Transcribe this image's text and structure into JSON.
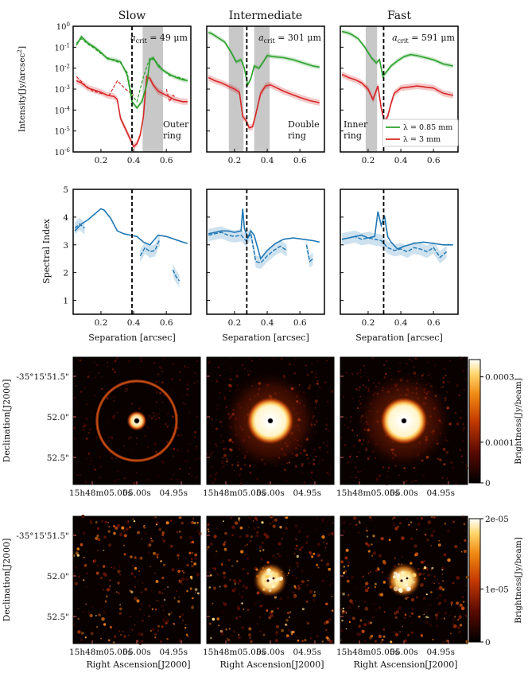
{
  "columns": [
    "Slow",
    "Intermediate",
    "Fast"
  ],
  "colors": {
    "green": "#2ca02c",
    "red": "#d62728",
    "blue": "#1f77b4",
    "region": "#c8c8c8"
  },
  "chart_data": [
    {
      "type": "line",
      "row": "intensity",
      "ylabel": "Intensity[Jy/arcsec$^2$]",
      "xlim": [
        0.03,
        0.75
      ],
      "ylim_log10": [
        -6,
        0
      ],
      "yscale": "log",
      "ytick_labels": [
        "10$^{-6}$",
        "10$^{-5}$",
        "10$^{-4}$",
        "10$^{-3}$",
        "10$^{-2}$",
        "10$^{-1}$",
        "10$^{0}$"
      ],
      "xtick_labels": [
        "0.2",
        "0.4",
        "0.6"
      ],
      "legend": [
        "λ = 0.85 mm",
        "λ = 3 mm"
      ],
      "panels": [
        {
          "title": "Slow",
          "a_crit_label": "a_crit = 49 μm",
          "dashed_x": 0.39,
          "shaded": [
            [
              0.455,
              0.58
            ]
          ],
          "annotation": [
            "Outer",
            "ring"
          ],
          "green": {
            "x": [
              0.05,
              0.08,
              0.12,
              0.16,
              0.2,
              0.24,
              0.28,
              0.32,
              0.36,
              0.39,
              0.42,
              0.45,
              0.48,
              0.5,
              0.52,
              0.55,
              0.58,
              0.62,
              0.66,
              0.7,
              0.73
            ],
            "log10_y": [
              -0.9,
              -0.5,
              -0.8,
              -1.0,
              -1.25,
              -1.55,
              -1.6,
              -1.7,
              -2.3,
              -3.6,
              -3.9,
              -3.6,
              -2.8,
              -1.6,
              -1.5,
              -1.9,
              -2.1,
              -2.3,
              -2.45,
              -2.55,
              -2.6
            ]
          },
          "green_model": {
            "x": [
              0.05,
              0.08,
              0.12,
              0.16,
              0.2,
              0.24,
              0.28,
              0.32,
              0.36,
              0.39,
              0.42,
              0.46,
              0.5,
              0.54,
              0.58,
              0.62,
              0.66,
              0.7,
              0.73
            ],
            "log10_y": [
              -0.8,
              -0.6,
              -0.85,
              -1.05,
              -1.3,
              -1.5,
              -1.65,
              -1.75,
              -2.2,
              -3.3,
              -3.6,
              -2.4,
              -1.5,
              -1.7,
              -2.1,
              -2.35,
              -2.4,
              -2.5,
              -2.6
            ]
          },
          "red": {
            "x": [
              0.05,
              0.08,
              0.12,
              0.16,
              0.2,
              0.24,
              0.28,
              0.3,
              0.32,
              0.35,
              0.38,
              0.4,
              0.42,
              0.44,
              0.46,
              0.48,
              0.5,
              0.52,
              0.55,
              0.6,
              0.65,
              0.7,
              0.73
            ],
            "log10_y": [
              -2.6,
              -2.7,
              -2.95,
              -3.05,
              -3.15,
              -3.3,
              -3.35,
              -3.5,
              -4.4,
              -4.9,
              -5.4,
              -5.75,
              -5.6,
              -5.2,
              -4.3,
              -2.4,
              -2.5,
              -2.8,
              -3.1,
              -3.3,
              -3.5,
              -3.6,
              -3.6
            ]
          },
          "red_model": {
            "x": [
              0.05,
              0.1,
              0.15,
              0.2,
              0.25,
              0.3,
              0.35,
              0.4
            ],
            "log10_y": [
              -2.4,
              -2.8,
              -3.1,
              -3.2,
              -3.3,
              -2.6,
              -3.0,
              -3.3
            ]
          },
          "red_model_segment2": {
            "x": [
              0.6,
              0.62,
              0.64,
              0.66
            ],
            "log10_y": [
              -3.0,
              -3.6,
              -3.3,
              -3.4
            ]
          }
        },
        {
          "title": "Intermediate",
          "a_crit_label": "a_crit = 301 μm",
          "dashed_x": 0.275,
          "shaded": [
            [
              0.165,
              0.255
            ],
            [
              0.32,
              0.415
            ]
          ],
          "annotation": [
            "Double",
            "ring"
          ],
          "green": {
            "x": [
              0.04,
              0.06,
              0.1,
              0.14,
              0.18,
              0.21,
              0.24,
              0.26,
              0.28,
              0.3,
              0.32,
              0.35,
              0.38,
              0.4,
              0.44,
              0.5,
              0.56,
              0.62,
              0.68,
              0.72
            ],
            "log10_y": [
              -0.3,
              -0.35,
              -0.55,
              -0.75,
              -1.25,
              -1.7,
              -1.6,
              -2.0,
              -2.8,
              -2.5,
              -1.9,
              -2.0,
              -1.65,
              -1.4,
              -1.45,
              -1.5,
              -1.6,
              -1.75,
              -1.9,
              -1.95
            ]
          },
          "red": {
            "x": [
              0.04,
              0.08,
              0.12,
              0.16,
              0.2,
              0.23,
              0.25,
              0.27,
              0.29,
              0.31,
              0.33,
              0.36,
              0.39,
              0.42,
              0.46,
              0.5,
              0.55,
              0.6,
              0.66,
              0.72
            ],
            "log10_y": [
              -2.45,
              -2.6,
              -2.7,
              -2.85,
              -3.0,
              -3.15,
              -4.3,
              -4.5,
              -4.85,
              -4.8,
              -4.2,
              -3.2,
              -2.85,
              -2.8,
              -2.95,
              -3.1,
              -3.25,
              -3.4,
              -3.55,
              -3.65
            ]
          }
        },
        {
          "title": "Fast",
          "a_crit_label": "a_crit = 591 μm",
          "dashed_x": 0.295,
          "shaded": [
            [
              0.185,
              0.255
            ]
          ],
          "annotation": [
            "Inner",
            "ring"
          ],
          "green": {
            "x": [
              0.04,
              0.07,
              0.1,
              0.14,
              0.18,
              0.22,
              0.25,
              0.27,
              0.29,
              0.31,
              0.34,
              0.38,
              0.42,
              0.46,
              0.5,
              0.55,
              0.6,
              0.66,
              0.72
            ],
            "log10_y": [
              -0.25,
              -0.3,
              -0.4,
              -0.6,
              -1.0,
              -1.5,
              -1.75,
              -1.6,
              -2.4,
              -2.2,
              -1.9,
              -1.65,
              -1.45,
              -1.35,
              -1.4,
              -1.5,
              -1.6,
              -1.8,
              -1.9
            ]
          },
          "red": {
            "x": [
              0.04,
              0.08,
              0.12,
              0.16,
              0.2,
              0.23,
              0.26,
              0.28,
              0.3,
              0.32,
              0.34,
              0.36,
              0.4,
              0.45,
              0.5,
              0.55,
              0.6,
              0.66,
              0.72
            ],
            "log10_y": [
              -2.3,
              -2.45,
              -2.55,
              -2.7,
              -3.0,
              -3.5,
              -2.85,
              -3.9,
              -4.55,
              -4.3,
              -3.7,
              -3.2,
              -2.95,
              -2.9,
              -2.85,
              -2.9,
              -2.95,
              -3.2,
              -3.3
            ]
          }
        }
      ]
    },
    {
      "type": "line",
      "row": "spectral-index",
      "ylabel": "Spectral Index",
      "xlabel": "Separation [arcsec]",
      "xlim": [
        0.03,
        0.75
      ],
      "ylim": [
        0.5,
        5
      ],
      "ytick_labels": [
        "1",
        "2",
        "3",
        "4",
        "5"
      ],
      "xtick_labels": [
        "0.2",
        "0.4",
        "0.6"
      ],
      "panels": [
        {
          "dashed_x": 0.39,
          "model": {
            "x": [
              0.04,
              0.08,
              0.12,
              0.16,
              0.2,
              0.22,
              0.26,
              0.3,
              0.34,
              0.38,
              0.42,
              0.46,
              0.5,
              0.55,
              0.6,
              0.65,
              0.7,
              0.73
            ],
            "y": [
              3.5,
              3.75,
              3.9,
              4.1,
              4.3,
              4.25,
              3.95,
              3.5,
              3.4,
              3.35,
              3.3,
              3.1,
              3.0,
              3.35,
              3.3,
              3.2,
              3.1,
              3.05
            ]
          },
          "obs_segments": [
            {
              "x": [
                0.04,
                0.07,
                0.1
              ],
              "y": [
                3.6,
                3.75,
                3.6
              ]
            },
            {
              "x": [
                0.44,
                0.47,
                0.5,
                0.53,
                0.56
              ],
              "y": [
                2.6,
                2.9,
                2.75,
                2.8,
                3.2
              ]
            },
            {
              "x": [
                0.64,
                0.66,
                0.68
              ],
              "y": [
                2.1,
                1.85,
                1.7
              ]
            }
          ]
        },
        {
          "dashed_x": 0.275,
          "model": {
            "x": [
              0.04,
              0.08,
              0.12,
              0.16,
              0.2,
              0.24,
              0.25,
              0.26,
              0.28,
              0.3,
              0.32,
              0.36,
              0.4,
              0.45,
              0.5,
              0.56,
              0.62,
              0.68,
              0.72
            ],
            "y": [
              3.4,
              3.45,
              3.5,
              3.5,
              3.45,
              3.5,
              4.3,
              3.6,
              3.25,
              3.5,
              3.35,
              2.5,
              2.8,
              3.05,
              3.2,
              3.25,
              3.2,
              3.15,
              3.1
            ]
          },
          "obs_segments": [
            {
              "x": [
                0.04,
                0.08,
                0.12,
                0.16,
                0.2,
                0.24,
                0.27,
                0.3,
                0.33,
                0.36,
                0.4,
                0.44,
                0.48,
                0.52
              ],
              "y": [
                3.35,
                3.4,
                3.45,
                3.35,
                3.3,
                3.35,
                3.15,
                3.4,
                2.4,
                2.35,
                2.6,
                2.8,
                2.95,
                2.8
              ]
            },
            {
              "x": [
                0.64,
                0.66,
                0.68
              ],
              "y": [
                3.0,
                2.4,
                2.5
              ]
            }
          ]
        },
        {
          "dashed_x": 0.295,
          "model": {
            "x": [
              0.04,
              0.08,
              0.12,
              0.16,
              0.2,
              0.24,
              0.26,
              0.28,
              0.3,
              0.32,
              0.34,
              0.38,
              0.42,
              0.48,
              0.54,
              0.6,
              0.66,
              0.72
            ],
            "y": [
              3.2,
              3.25,
              3.3,
              3.35,
              3.25,
              3.3,
              4.2,
              3.7,
              4.05,
              3.3,
              3.1,
              2.85,
              2.95,
              3.05,
              3.1,
              3.05,
              3.0,
              3.0
            ]
          },
          "obs_segments": [
            {
              "x": [
                0.04,
                0.08,
                0.12,
                0.16,
                0.2,
                0.24,
                0.28,
                0.32,
                0.36,
                0.4,
                0.44,
                0.48,
                0.52,
                0.56,
                0.6,
                0.64,
                0.68
              ],
              "y": [
                3.2,
                3.25,
                3.3,
                3.2,
                3.25,
                3.2,
                3.15,
                2.9,
                2.8,
                2.85,
                2.75,
                2.9,
                2.85,
                2.75,
                2.9,
                2.55,
                2.75
              ]
            }
          ]
        }
      ]
    },
    {
      "type": "heatmap",
      "row": "images-0.85mm",
      "ylabel": "Declination[J2000]",
      "ytick_labels": [
        "-35°15'51.5\"",
        "52.0\"",
        "52.5\""
      ],
      "xtick_labels": [
        "15h48m05.05s",
        "05.00s",
        "04.95s"
      ],
      "colorbar_label": "Brightness[Jy/beam]",
      "colorbar_ticks": [
        "0.0003",
        "0.0001",
        "0"
      ],
      "colorbar_range": [
        0,
        0.00035
      ],
      "panels": [
        {
          "title": "Slow",
          "core": "small",
          "ring": true
        },
        {
          "title": "Intermediate",
          "core": "large",
          "ring": false
        },
        {
          "title": "Fast",
          "core": "large",
          "ring": false
        }
      ]
    },
    {
      "type": "heatmap",
      "row": "images-3mm",
      "ylabel": "Declination[J2000]",
      "xlabel": "Right Ascension[J2000]",
      "ytick_labels": [
        "-35°15'51.5\"",
        "52.0\"",
        "52.5\""
      ],
      "xtick_labels": [
        "15h48m05.05s",
        "05.00s",
        "04.95s"
      ],
      "colorbar_label": "Brightness[Jy/beam]",
      "colorbar_ticks": [
        "2e-05",
        "1e-05",
        "0"
      ],
      "colorbar_range": [
        0,
        2e-05
      ],
      "panels": [
        {
          "title": "Slow",
          "core": "none"
        },
        {
          "title": "Intermediate",
          "core": "medium"
        },
        {
          "title": "Fast",
          "core": "medium"
        }
      ]
    }
  ]
}
